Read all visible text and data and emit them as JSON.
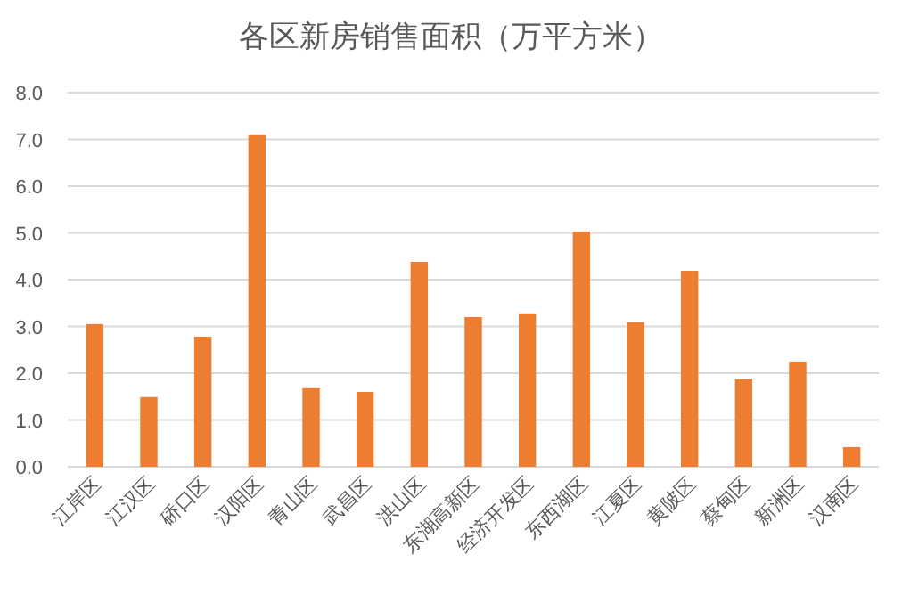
{
  "chart_data": {
    "type": "bar",
    "title": "各区新房销售面积（万平方米）",
    "categories": [
      "江岸区",
      "江汉区",
      "硚口区",
      "汉阳区",
      "青山区",
      "武昌区",
      "洪山区",
      "东湖高新区",
      "经济开发区",
      "东西湖区",
      "江夏区",
      "黄陂区",
      "蔡甸区",
      "新洲区",
      "汉南区"
    ],
    "values": [
      3.05,
      1.49,
      2.78,
      7.09,
      1.68,
      1.6,
      4.38,
      3.2,
      3.28,
      5.03,
      3.09,
      4.19,
      1.87,
      2.25,
      0.42
    ],
    "color": "#ed7d31",
    "ylim": [
      0,
      8
    ],
    "yticks": [
      {
        "value": 0,
        "label": "0.0"
      },
      {
        "value": 1,
        "label": "1.0"
      },
      {
        "value": 2,
        "label": "2.0"
      },
      {
        "value": 3,
        "label": "3.0"
      },
      {
        "value": 4,
        "label": "4.0"
      },
      {
        "value": 5,
        "label": "5.0"
      },
      {
        "value": 6,
        "label": "6.0"
      },
      {
        "value": 7,
        "label": "7.0"
      },
      {
        "value": 8,
        "label": "8.0"
      }
    ],
    "grid": "y"
  }
}
